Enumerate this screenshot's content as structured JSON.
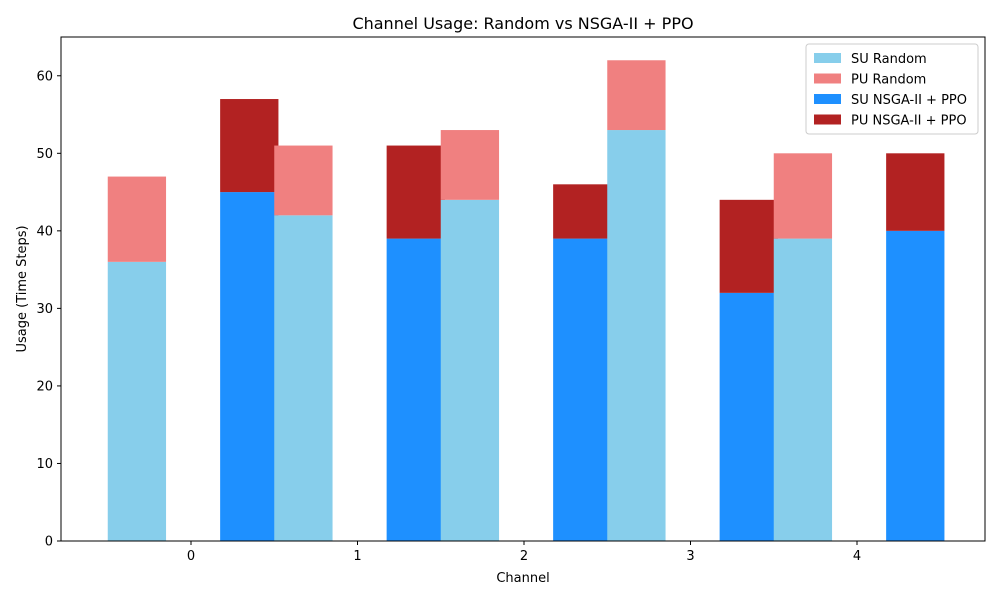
{
  "chart_data": {
    "type": "bar",
    "title": "Channel Usage: Random vs NSGA-II + PPO",
    "xlabel": "Channel",
    "ylabel": "Usage (Time Steps)",
    "categories": [
      0,
      1,
      2,
      3,
      4
    ],
    "ylim": [
      0,
      65
    ],
    "yticks": [
      0,
      10,
      20,
      30,
      40,
      50,
      60
    ],
    "stacked": true,
    "grid": false,
    "legend_position": "top-right",
    "series": [
      {
        "name": "SU Random",
        "group": "Random",
        "color": "#87CEEB",
        "values": [
          36,
          42,
          44,
          53,
          39
        ]
      },
      {
        "name": "PU Random",
        "group": "Random",
        "color": "#F08080",
        "values": [
          11,
          9,
          9,
          9,
          11
        ]
      },
      {
        "name": "SU NSGA-II + PPO",
        "group": "NSGA-II + PPO",
        "color": "#1E90FF",
        "values": [
          45,
          39,
          39,
          32,
          40
        ]
      },
      {
        "name": "PU NSGA-II + PPO",
        "group": "NSGA-II + PPO",
        "color": "#B22222",
        "values": [
          12,
          12,
          7,
          12,
          10
        ]
      }
    ]
  }
}
